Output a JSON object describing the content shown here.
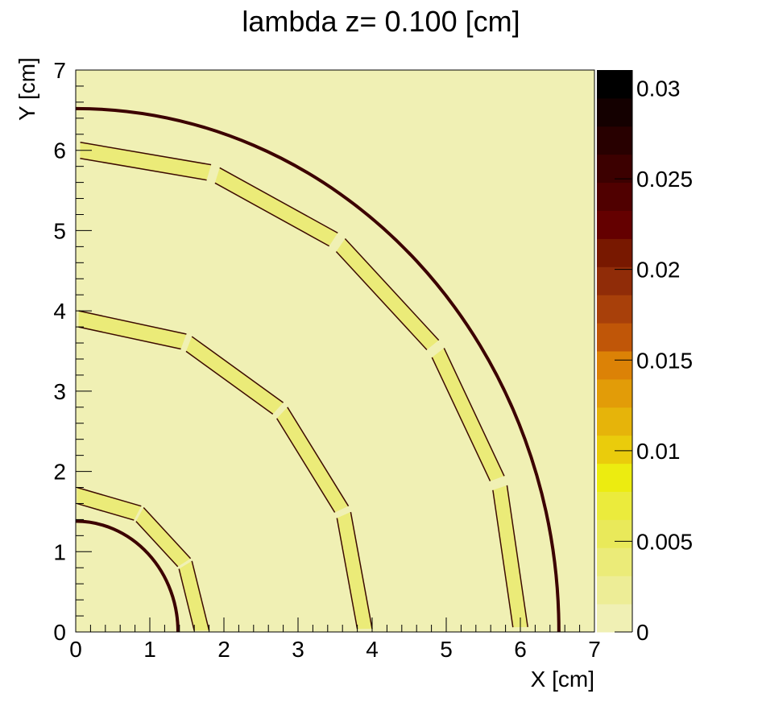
{
  "chart_data": {
    "type": "heatmap",
    "title": "lambda z=  0.100 [cm]",
    "xlabel": "X [cm]",
    "ylabel": "Y [cm]",
    "xlim": [
      0,
      7
    ],
    "ylim": [
      0,
      7
    ],
    "x_ticks": [
      "0",
      "1",
      "2",
      "3",
      "4",
      "5",
      "6",
      "7"
    ],
    "y_ticks": [
      "0",
      "1",
      "2",
      "3",
      "4",
      "5",
      "6",
      "7"
    ],
    "colorbar": {
      "range": [
        0,
        0.031
      ],
      "ticks": [
        "0",
        "0.005",
        "0.01",
        "0.015",
        "0.02",
        "0.025",
        "0.03"
      ],
      "n_bins": 20,
      "colors": [
        "#f0f0b4",
        "#eded96",
        "#ebeb78",
        "#e9e95a",
        "#ebeb3c",
        "#ecec10",
        "#eacc0c",
        "#e6b40a",
        "#e29c08",
        "#dc8206",
        "#d26a06",
        "#c05608",
        "#a8400a",
        "#902c08",
        "#781800",
        "#640000",
        "#500000",
        "#3c0000",
        "#280000",
        "#140000",
        "#000000"
      ]
    },
    "background_value": 0,
    "background_color": "#f0f0b4",
    "features": [
      {
        "name": "inner-ring",
        "shape": "arc",
        "radius_cm": 1.38,
        "value": 0.028
      },
      {
        "name": "outer-ring",
        "shape": "arc",
        "radius_cm": 6.52,
        "value": 0.028
      },
      {
        "name": "segment-ring-1",
        "shape": "segmented-polygon",
        "inner_radius_cm": 1.6,
        "outer_radius_cm": 1.8,
        "value": 0.003
      },
      {
        "name": "segment-ring-2",
        "shape": "segmented-polygon",
        "inner_radius_cm": 3.8,
        "outer_radius_cm": 4.0,
        "value": 0.003
      },
      {
        "name": "segment-ring-3",
        "shape": "segmented-polygon",
        "inner_radius_cm": 5.9,
        "outer_radius_cm": 6.1,
        "value": 0.003
      }
    ]
  }
}
